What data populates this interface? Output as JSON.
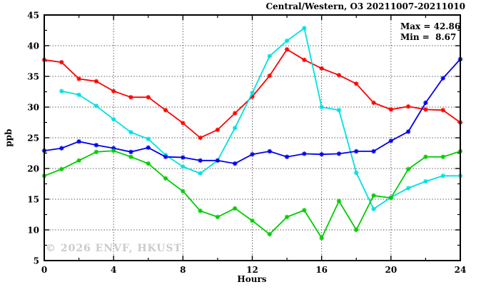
{
  "header": {
    "title": "Central/Western, O3 20211007-20211010"
  },
  "legend": {
    "max_line": "Max = 42.86",
    "min_line": "Min =  8.67"
  },
  "watermark": "© 2026 ENVF, HKUST",
  "chart_data": {
    "type": "line",
    "title": "Central/Western, O3 20211007-20211010",
    "xlabel": "Hours",
    "ylabel": "ppb",
    "xlim": [
      0,
      24
    ],
    "ylim": [
      5,
      45
    ],
    "x_major_ticks": [
      0,
      4,
      8,
      12,
      16,
      20,
      24
    ],
    "x_minor_ticks": [
      2,
      6,
      10,
      14,
      18,
      22
    ],
    "y_major_ticks": [
      5,
      10,
      15,
      20,
      25,
      30,
      35,
      40,
      45
    ],
    "y_minor_ticks": [
      7.5,
      12.5,
      17.5,
      22.5,
      27.5,
      32.5,
      37.5,
      42.5
    ],
    "grid": true,
    "legend_position": "top-right",
    "annotations": [
      "Max = 42.86",
      "Min =  8.67"
    ],
    "x": [
      0,
      1,
      2,
      3,
      4,
      5,
      6,
      7,
      8,
      9,
      10,
      11,
      12,
      13,
      14,
      15,
      16,
      17,
      18,
      19,
      20,
      21,
      22,
      23,
      24
    ],
    "series": [
      {
        "name": "red-line",
        "color": "#ff0000",
        "values": [
          37.7,
          37.3,
          34.6,
          34.2,
          32.6,
          31.6,
          31.6,
          29.5,
          27.4,
          25.0,
          26.3,
          29.0,
          31.7,
          35.1,
          39.4,
          37.7,
          36.3,
          35.2,
          33.8,
          30.7,
          29.6,
          30.1,
          29.6,
          29.5,
          27.5
        ]
      },
      {
        "name": "cyan-line",
        "color": "#00e0e0",
        "values": [
          null,
          32.6,
          32.0,
          30.2,
          28.0,
          25.9,
          24.8,
          22.2,
          20.3,
          19.2,
          21.3,
          26.6,
          32.3,
          38.3,
          40.8,
          42.86,
          30.0,
          29.5,
          19.3,
          13.4,
          15.3,
          16.8,
          17.9,
          18.8,
          18.8
        ]
      },
      {
        "name": "blue-line",
        "color": "#0000ee",
        "values": [
          22.9,
          23.3,
          24.4,
          23.8,
          23.3,
          22.7,
          23.4,
          21.9,
          21.8,
          21.3,
          21.3,
          20.8,
          22.3,
          22.8,
          21.9,
          22.4,
          22.3,
          22.4,
          22.8,
          22.8,
          24.5,
          26.0,
          30.7,
          34.7,
          37.8
        ]
      },
      {
        "name": "green-line",
        "color": "#00cd00",
        "values": [
          18.8,
          19.9,
          21.3,
          22.7,
          22.9,
          21.9,
          20.8,
          18.4,
          16.3,
          13.1,
          12.1,
          13.5,
          11.5,
          9.3,
          12.1,
          13.2,
          8.67,
          14.7,
          10.0,
          15.6,
          15.2,
          19.9,
          21.9,
          21.9,
          22.8
        ]
      }
    ]
  }
}
